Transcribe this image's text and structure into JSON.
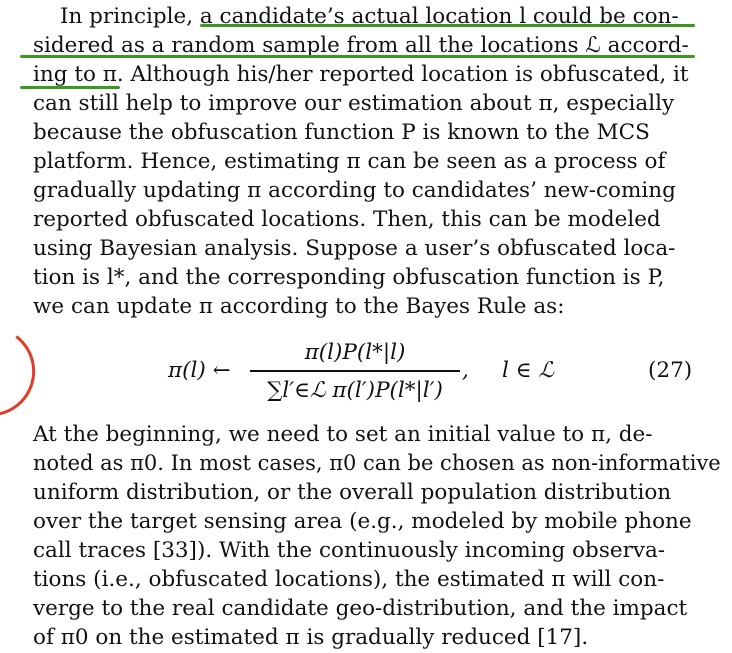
{
  "paragraph1": {
    "lines": [
      "In principle, a candidate’s actual location l could be con-",
      "sidered as a random sample from all the locations ℒ accord-",
      "ing to π. Although his/her reported location is obfuscated, it",
      "can still help to improve our estimation about π, especially",
      "because the obfuscation function P is known to the MCS",
      "platform. Hence, estimating π can be seen as a process of",
      "gradually updating π according to candidates’ new-coming",
      "reported obfuscated locations. Then, this can be modeled",
      "using Bayesian analysis. Suppose a user’s obfuscated loca-",
      "tion is l*, and the corresponding obfuscation function is P,",
      "we can update π according to the Bayes Rule as:"
    ]
  },
  "equation": {
    "lhs": "π(l) ←",
    "numerator": "π(l)P(l*|l)",
    "denominator": "∑l′∈ℒ π(l′)P(l*|l′)",
    "comma": ",",
    "condition": "l ∈ ℒ",
    "number": "(27)"
  },
  "paragraph2": {
    "lines": [
      "At the beginning, we need to set an initial value to π, de-",
      "noted as π0. In most cases, π0 can be chosen as non-informative",
      "uniform distribution, or the overall population distribution",
      "over the target sensing area (e.g., modeled by mobile phone",
      "call traces [33]). With the continuously incoming observa-",
      "tions (i.e., obfuscated locations), the estimated π will con-",
      "verge to the real candidate geo-distribution, and the impact",
      "of π0 on the estimated π is gradually reduced [17]."
    ]
  },
  "annotations": {
    "highlight_color": "#3a9a1e",
    "circle_color": "#e23b2a"
  }
}
